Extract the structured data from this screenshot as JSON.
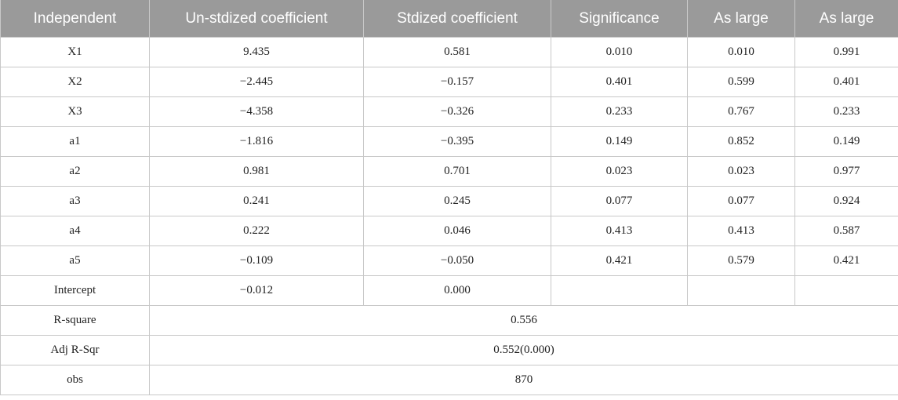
{
  "header": [
    "Independent",
    "Un-stdized coefficient",
    "Stdized coefficient",
    "Significance",
    "As large",
    "As large"
  ],
  "rows": [
    [
      "X1",
      "9.435",
      "0.581",
      "0.010",
      "0.010",
      "0.991"
    ],
    [
      "X2",
      "−2.445",
      "−0.157",
      "0.401",
      "0.599",
      "0.401"
    ],
    [
      "X3",
      "−4.358",
      "−0.326",
      "0.233",
      "0.767",
      "0.233"
    ],
    [
      "a1",
      "−1.816",
      "−0.395",
      "0.149",
      "0.852",
      "0.149"
    ],
    [
      "a2",
      "0.981",
      "0.701",
      "0.023",
      "0.023",
      "0.977"
    ],
    [
      "a3",
      "0.241",
      "0.245",
      "0.077",
      "0.077",
      "0.924"
    ],
    [
      "a4",
      "0.222",
      "0.046",
      "0.413",
      "0.413",
      "0.587"
    ],
    [
      "a5",
      "−0.109",
      "−0.050",
      "0.421",
      "0.579",
      "0.421"
    ],
    [
      "Intercept",
      "−0.012",
      "0.000",
      "",
      "",
      ""
    ]
  ],
  "summary": [
    [
      "R-square",
      "0.556"
    ],
    [
      "Adj R-Sqr",
      "0.552(0.000)"
    ],
    [
      "obs",
      "870"
    ]
  ]
}
